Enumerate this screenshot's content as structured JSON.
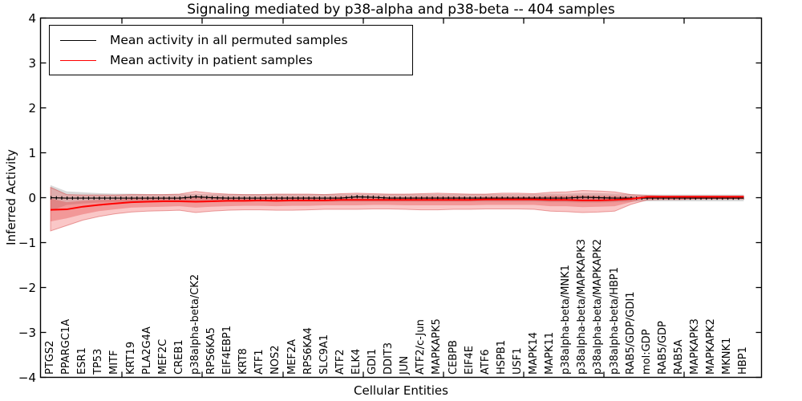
{
  "title": "Signaling mediated by p38-alpha and p38-beta -- 404 samples",
  "axes": {
    "xlabel": "Cellular Entities",
    "ylabel": "Inferred Activity",
    "ytick_labels": [
      "4",
      "3",
      "2",
      "1",
      "0",
      "−1",
      "−2",
      "−3",
      "−4"
    ]
  },
  "legend": {
    "items": [
      {
        "label": "Mean activity in all permuted samples",
        "color": "#000000"
      },
      {
        "label": "Mean activity in patient samples",
        "color": "#ff0000"
      }
    ]
  },
  "chart_data": {
    "type": "line",
    "title": "Signaling mediated by p38-alpha and p38-beta -- 404 samples",
    "xlabel": "Cellular Entities",
    "ylabel": "Inferred Activity",
    "ylim": [
      -4,
      4
    ],
    "yticks": [
      4,
      3,
      2,
      1,
      0,
      -1,
      -2,
      -3,
      -4
    ],
    "grid": false,
    "legend_position": "upper-left",
    "categories": [
      "PTGS2",
      "PPARGC1A",
      "ESR1",
      "TP53",
      "MITF",
      "KRT19",
      "PLA2G4A",
      "MEF2C",
      "CREB1",
      "p38alpha-beta/CK2",
      "RPS6KA5",
      "EIF4EBP1",
      "KRT8",
      "ATF1",
      "NOS2",
      "MEF2A",
      "RPS6KA4",
      "SLC9A1",
      "ATF2",
      "ELK4",
      "GDI1",
      "DDIT3",
      "JUN",
      "ATF2/c-Jun",
      "MAPKAPK5",
      "CEBPB",
      "EIF4E",
      "ATF6",
      "HSPB1",
      "USF1",
      "MAPK14",
      "MAPK11",
      "p38alpha-beta/MNK1",
      "p38alpha-beta/MAPKAPK3",
      "p38alpha-beta/MAPKAPK2",
      "p38alpha-beta/HBP1",
      "RAB5/GDP/GDI1",
      "mol:GDP",
      "RAB5/GDP",
      "RAB5A",
      "MAPKAPK3",
      "MAPKAPK2",
      "MKNK1",
      "HBP1"
    ],
    "series": [
      {
        "name": "Mean activity in all permuted samples",
        "color": "#000000",
        "style": "solid-with-tick-texture",
        "values": [
          0.0,
          -0.01,
          -0.01,
          -0.01,
          -0.01,
          -0.01,
          -0.01,
          -0.01,
          -0.01,
          0.02,
          0.0,
          -0.01,
          -0.01,
          -0.01,
          -0.01,
          -0.01,
          -0.01,
          -0.01,
          -0.01,
          0.02,
          0.01,
          -0.01,
          -0.01,
          -0.01,
          -0.01,
          -0.01,
          -0.01,
          -0.01,
          -0.01,
          -0.01,
          -0.01,
          -0.01,
          -0.01,
          0.01,
          0.0,
          -0.01,
          -0.01,
          -0.01,
          -0.01,
          -0.01,
          -0.01,
          -0.01,
          -0.01,
          -0.01
        ]
      },
      {
        "name": "Mean activity in patient samples",
        "color": "#ff0000",
        "style": "solid",
        "values": [
          -0.27,
          -0.26,
          -0.2,
          -0.16,
          -0.13,
          -0.1,
          -0.09,
          -0.08,
          -0.08,
          -0.09,
          -0.08,
          -0.07,
          -0.07,
          -0.06,
          -0.07,
          -0.06,
          -0.06,
          -0.06,
          -0.05,
          -0.05,
          -0.05,
          -0.05,
          -0.05,
          -0.05,
          -0.05,
          -0.05,
          -0.05,
          -0.04,
          -0.04,
          -0.04,
          -0.04,
          -0.05,
          -0.05,
          -0.06,
          -0.06,
          -0.05,
          -0.03,
          0.02,
          0.02,
          0.02,
          0.02,
          0.02,
          0.02,
          0.02
        ]
      }
    ],
    "bands": [
      {
        "name": "permuted-sample-range",
        "color": "#8a8a8a",
        "opacity": 0.32,
        "upper": [
          0.28,
          0.14,
          0.12,
          0.1,
          0.09,
          0.09,
          0.08,
          0.08,
          0.08,
          0.09,
          0.08,
          0.08,
          0.08,
          0.08,
          0.08,
          0.08,
          0.08,
          0.08,
          0.08,
          0.08,
          0.08,
          0.08,
          0.08,
          0.08,
          0.08,
          0.08,
          0.08,
          0.08,
          0.08,
          0.08,
          0.08,
          0.09,
          0.09,
          0.1,
          0.1,
          0.09,
          0.08,
          0.07,
          0.07,
          0.07,
          0.07,
          0.07,
          0.07,
          0.07
        ],
        "lower": [
          -0.3,
          -0.16,
          -0.13,
          -0.11,
          -0.1,
          -0.1,
          -0.09,
          -0.09,
          -0.09,
          -0.1,
          -0.09,
          -0.09,
          -0.09,
          -0.09,
          -0.09,
          -0.09,
          -0.09,
          -0.09,
          -0.09,
          -0.09,
          -0.09,
          -0.09,
          -0.09,
          -0.09,
          -0.09,
          -0.09,
          -0.09,
          -0.09,
          -0.09,
          -0.09,
          -0.09,
          -0.1,
          -0.1,
          -0.11,
          -0.11,
          -0.1,
          -0.09,
          -0.08,
          -0.08,
          -0.08,
          -0.08,
          -0.08,
          -0.08,
          -0.08
        ]
      },
      {
        "name": "patient-sample-range-outer",
        "color": "#ee4444",
        "opacity": 0.3,
        "edge_color": "#cc2222",
        "edge_opacity": 0.4,
        "upper": [
          0.23,
          0.07,
          0.06,
          0.06,
          0.06,
          0.07,
          0.07,
          0.07,
          0.08,
          0.14,
          0.1,
          0.08,
          0.07,
          0.07,
          0.08,
          0.08,
          0.08,
          0.07,
          0.09,
          0.1,
          0.09,
          0.08,
          0.08,
          0.09,
          0.1,
          0.09,
          0.08,
          0.08,
          0.1,
          0.1,
          0.09,
          0.12,
          0.13,
          0.16,
          0.15,
          0.13,
          0.07,
          0.05,
          0.04,
          0.04,
          0.04,
          0.04,
          0.04,
          0.04
        ],
        "lower": [
          -0.74,
          -0.62,
          -0.5,
          -0.42,
          -0.36,
          -0.32,
          -0.3,
          -0.29,
          -0.28,
          -0.33,
          -0.3,
          -0.28,
          -0.27,
          -0.27,
          -0.28,
          -0.28,
          -0.27,
          -0.26,
          -0.26,
          -0.26,
          -0.25,
          -0.25,
          -0.26,
          -0.27,
          -0.27,
          -0.26,
          -0.26,
          -0.25,
          -0.25,
          -0.25,
          -0.26,
          -0.3,
          -0.31,
          -0.33,
          -0.32,
          -0.3,
          -0.15,
          -0.05,
          -0.04,
          -0.04,
          -0.03,
          -0.03,
          -0.03,
          -0.03
        ]
      },
      {
        "name": "patient-sample-range-inner",
        "color": "#dd2222",
        "opacity": 0.28,
        "upper": [
          -0.02,
          -0.1,
          -0.07,
          -0.05,
          -0.04,
          -0.02,
          -0.01,
          0.0,
          0.0,
          0.03,
          0.01,
          0.0,
          0.0,
          0.0,
          0.01,
          0.01,
          0.01,
          0.0,
          0.02,
          0.02,
          0.02,
          0.01,
          0.01,
          0.02,
          0.02,
          0.02,
          0.01,
          0.02,
          0.02,
          0.02,
          0.02,
          0.04,
          0.04,
          0.05,
          0.04,
          0.04,
          0.02,
          0.03,
          0.03,
          0.03,
          0.03,
          0.03,
          0.03,
          0.03
        ],
        "lower": [
          -0.53,
          -0.46,
          -0.37,
          -0.3,
          -0.26,
          -0.22,
          -0.21,
          -0.2,
          -0.19,
          -0.22,
          -0.2,
          -0.19,
          -0.18,
          -0.18,
          -0.19,
          -0.18,
          -0.18,
          -0.17,
          -0.17,
          -0.17,
          -0.16,
          -0.16,
          -0.17,
          -0.17,
          -0.17,
          -0.17,
          -0.17,
          -0.16,
          -0.16,
          -0.16,
          -0.16,
          -0.19,
          -0.19,
          -0.21,
          -0.2,
          -0.19,
          -0.1,
          -0.01,
          -0.01,
          -0.01,
          -0.01,
          -0.01,
          -0.01,
          -0.01
        ]
      }
    ]
  }
}
